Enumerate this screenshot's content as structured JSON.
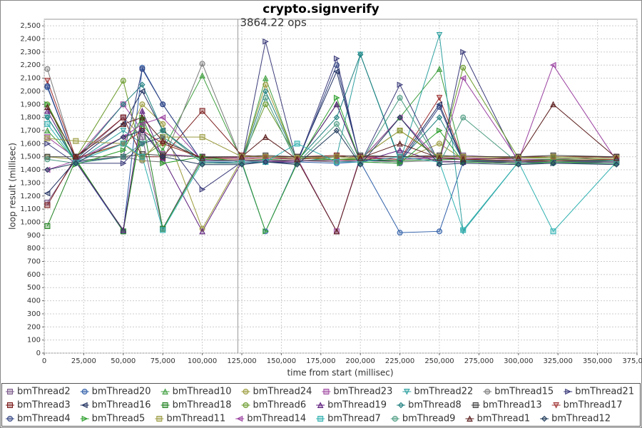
{
  "chart_data": {
    "type": "line",
    "title": "crypto.signverify",
    "x_label": "time from start (millisec)",
    "y_label": "loop result (millisec)",
    "annotation": {
      "text": "3864.22 ops",
      "x": 122500
    },
    "grid": true,
    "xlim": [
      0,
      375000
    ],
    "xticks": [
      0,
      {
        "value": 25000,
        "label": "25,000"
      },
      {
        "value": 50000,
        "label": "50,000"
      },
      {
        "value": 75000,
        "label": "75,000"
      },
      {
        "value": 100000,
        "label": "100,000"
      },
      {
        "value": 125000,
        "label": "125,000"
      },
      {
        "value": 150000,
        "label": "150,000"
      },
      {
        "value": 175000,
        "label": "175,000"
      },
      {
        "value": 200000,
        "label": "200,000"
      },
      {
        "value": 225000,
        "label": "225,000"
      },
      {
        "value": 250000,
        "label": "250,000"
      },
      {
        "value": 275000,
        "label": "275,000"
      },
      {
        "value": 300000,
        "label": "300,000"
      },
      {
        "value": 325000,
        "label": "325,000"
      },
      {
        "value": 350000,
        "label": "350,000"
      },
      {
        "value": 375000,
        "label": "375,000"
      }
    ],
    "ylim": [
      0,
      2550
    ],
    "yticks": [
      0,
      100,
      200,
      300,
      400,
      500,
      600,
      700,
      800,
      900,
      {
        "value": 1000,
        "label": "1,000"
      },
      {
        "value": 1100,
        "label": "1,100"
      },
      {
        "value": 1200,
        "label": "1,200"
      },
      {
        "value": 1300,
        "label": "1,300"
      },
      {
        "value": 1400,
        "label": "1,400"
      },
      {
        "value": 1500,
        "label": "1,500"
      },
      {
        "value": 1600,
        "label": "1,600"
      },
      {
        "value": 1700,
        "label": "1,700"
      },
      {
        "value": 1800,
        "label": "1,800"
      },
      {
        "value": 1900,
        "label": "1,900"
      },
      {
        "value": 2000,
        "label": "2,000"
      },
      {
        "value": 2100,
        "label": "2,100"
      },
      {
        "value": 2200,
        "label": "2,200"
      },
      {
        "value": 2300,
        "label": "2,300"
      },
      {
        "value": 2400,
        "label": "2,400"
      },
      {
        "value": 2500,
        "label": "2,500"
      }
    ],
    "x": [
      2000,
      20000,
      50000,
      62000,
      75000,
      100000,
      125000,
      140000,
      160000,
      185000,
      200000,
      225000,
      250000,
      265000,
      300000,
      322000,
      362000
    ],
    "series": [
      {
        "name": "bmThread2",
        "color": "#7a5a8a",
        "marker": "square",
        "values": [
          1150,
          1480,
          1800,
          1650,
          950,
          1500,
          1490,
          1500,
          1480,
          1500,
          1490,
          1480,
          1500,
          1510,
          1490,
          1500,
          1490
        ]
      },
      {
        "name": "bmThread20",
        "color": "#2f5fa8",
        "marker": "circle",
        "values": [
          2030,
          1460,
          930,
          2180,
          1900,
          1460,
          1450,
          930,
          1460,
          1450,
          1460,
          920,
          930,
          1460,
          1450,
          1460,
          1450
        ]
      },
      {
        "name": "bmThread10",
        "color": "#3f9f3f",
        "marker": "triangle-up",
        "values": [
          1700,
          1470,
          940,
          1750,
          1550,
          2120,
          1470,
          2100,
          1460,
          1900,
          1470,
          1800,
          2170,
          1470,
          1460,
          1470,
          1460
        ]
      },
      {
        "name": "bmThread24",
        "color": "#9a9a3a",
        "marker": "circle",
        "values": [
          1500,
          1480,
          1600,
          1900,
          1750,
          950,
          1480,
          2050,
          1470,
          1470,
          1480,
          1470,
          1600,
          1480,
          1470,
          1470,
          1480
        ]
      },
      {
        "name": "bmThread23",
        "color": "#a04aa0",
        "marker": "square",
        "values": [
          1650,
          1490,
          1900,
          1700,
          1520,
          1500,
          1490,
          1500,
          1490,
          930,
          1500,
          1480,
          1490,
          1490,
          1480,
          1480,
          1500
        ]
      },
      {
        "name": "bmThread22",
        "color": "#2fa0a0",
        "marker": "triangle-down",
        "values": [
          1800,
          1460,
          1700,
          1600,
          1650,
          1460,
          1460,
          1460,
          1460,
          1500,
          2280,
          1460,
          2430,
          930,
          1460,
          1460,
          1460
        ]
      },
      {
        "name": "bmThread15",
        "color": "#7a7a7a",
        "marker": "circle",
        "values": [
          2170,
          1470,
          1500,
          1470,
          1460,
          2210,
          1470,
          1460,
          1470,
          1460,
          1470,
          1460,
          1470,
          1460,
          1470,
          1460,
          1470
        ]
      },
      {
        "name": "bmThread21",
        "color": "#3a3a7a",
        "marker": "triangle-right",
        "values": [
          1600,
          1450,
          1450,
          1600,
          1650,
          1250,
          1460,
          2380,
          1450,
          2250,
          1450,
          2050,
          1450,
          2300,
          1450,
          1450,
          1450
        ]
      },
      {
        "name": "bmThread3",
        "color": "#7a1a1a",
        "marker": "square",
        "values": [
          1130,
          1500,
          1800,
          1500,
          1500,
          1850,
          1510,
          1500,
          1500,
          1510,
          1500,
          1500,
          1500,
          1500,
          1500,
          1500,
          1500
        ]
      },
      {
        "name": "bmThread16",
        "color": "#1f3060",
        "marker": "triangle-left",
        "values": [
          1220,
          1470,
          1750,
          2000,
          1700,
          1470,
          1470,
          1470,
          1470,
          2150,
          1470,
          1470,
          1900,
          1470,
          1470,
          1470,
          1470
        ]
      },
      {
        "name": "bmThread18",
        "color": "#1f801f",
        "marker": "square",
        "values": [
          970,
          1480,
          930,
          1780,
          950,
          1480,
          1470,
          1480,
          1470,
          1480,
          1480,
          1470,
          1480,
          1480,
          1470,
          1480,
          1470
        ]
      },
      {
        "name": "bmThread6",
        "color": "#6a9a2a",
        "marker": "circle",
        "values": [
          1900,
          1490,
          2080,
          1500,
          1600,
          1490,
          1480,
          1900,
          1490,
          1480,
          1490,
          1700,
          1490,
          2180,
          1490,
          1490,
          1480
        ]
      },
      {
        "name": "bmThread19",
        "color": "#5a1a7a",
        "marker": "triangle-up",
        "values": [
          1850,
          1460,
          940,
          1850,
          1490,
          930,
          1460,
          1460,
          1460,
          1900,
          1460,
          1550,
          1460,
          1460,
          1460,
          1460,
          1460
        ]
      },
      {
        "name": "bmThread8",
        "color": "#1f7f7f",
        "marker": "diamond",
        "values": [
          1800,
          1470,
          1900,
          2050,
          1700,
          1470,
          1470,
          2000,
          1470,
          1800,
          2280,
          1470,
          1800,
          1470,
          1470,
          1470,
          1470
        ]
      },
      {
        "name": "bmThread13",
        "color": "#404040",
        "marker": "square",
        "values": [
          1500,
          1500,
          1500,
          1520,
          1510,
          1500,
          1500,
          1510,
          1500,
          1500,
          1510,
          1500,
          1510,
          1500,
          1500,
          1510,
          1500
        ]
      },
      {
        "name": "bmThread17",
        "color": "#a03030",
        "marker": "triangle-down",
        "values": [
          2080,
          1490,
          1600,
          1700,
          1600,
          1490,
          1480,
          1490,
          1480,
          1500,
          1490,
          1480,
          1950,
          1480,
          1470,
          1470,
          1480
        ]
      },
      {
        "name": "bmThread4",
        "color": "#2f4080",
        "marker": "circle",
        "values": [
          2040,
          1460,
          1500,
          2170,
          1900,
          1460,
          1450,
          1460,
          1450,
          2200,
          1460,
          1450,
          1880,
          1460,
          1450,
          1460,
          1450
        ]
      },
      {
        "name": "bmThread5",
        "color": "#2fa02f",
        "marker": "triangle-right",
        "values": [
          1900,
          1440,
          1550,
          1800,
          1450,
          1500,
          1460,
          930,
          1450,
          1950,
          1460,
          1450,
          1700,
          1460,
          1450,
          1460,
          1450
        ]
      },
      {
        "name": "bmThread11",
        "color": "#9a9a40",
        "marker": "square",
        "values": [
          1640,
          1620,
          1600,
          1480,
          1650,
          1650,
          1500,
          1500,
          1490,
          1500,
          1490,
          1700,
          1500,
          1500,
          1490,
          1500,
          1490
        ]
      },
      {
        "name": "bmThread14",
        "color": "#9a40a0",
        "marker": "triangle-left",
        "values": [
          1400,
          1470,
          1650,
          1750,
          1800,
          1470,
          1470,
          1470,
          1470,
          1470,
          1470,
          1800,
          1470,
          2100,
          1470,
          2200,
          1470
        ]
      },
      {
        "name": "bmThread7",
        "color": "#2fb0b0",
        "marker": "square",
        "values": [
          1750,
          1460,
          1600,
          1500,
          940,
          1460,
          1460,
          1460,
          1600,
          1460,
          1460,
          1500,
          1460,
          940,
          1460,
          930,
          1460
        ]
      },
      {
        "name": "bmThread9",
        "color": "#4a9a80",
        "marker": "circle",
        "values": [
          1480,
          1450,
          1500,
          1600,
          1700,
          1450,
          1450,
          1950,
          1450,
          1750,
          1450,
          1950,
          1450,
          1800,
          1450,
          1450,
          1450
        ]
      },
      {
        "name": "bmThread1",
        "color": "#5a1a1a",
        "marker": "triangle-up",
        "values": [
          1880,
          1500,
          1750,
          1800,
          1620,
          1490,
          1500,
          1650,
          1480,
          930,
          1490,
          1600,
          1490,
          1480,
          1490,
          1900,
          1490
        ]
      },
      {
        "name": "bmThread12",
        "color": "#1f3a5a",
        "marker": "diamond",
        "values": [
          1400,
          1450,
          1650,
          1700,
          1500,
          1440,
          1440,
          1460,
          1440,
          1700,
          1440,
          1800,
          1440,
          1450,
          1440,
          1450,
          1440
        ]
      }
    ]
  }
}
